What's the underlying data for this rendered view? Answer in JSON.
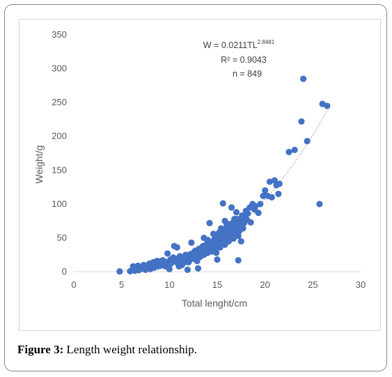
{
  "caption": {
    "label": "Figure 3:",
    "text": " Length weight relationship."
  },
  "annotation": {
    "equation_prefix": "W = 0.0211TL",
    "equation_exponent": "2.8481",
    "r_squared": "R² = 0.9043",
    "n": "n =  849"
  },
  "colors": {
    "points": "#4472C4",
    "trendline": "#8c8c8c",
    "text": "#595959"
  },
  "chart_data": {
    "type": "scatter",
    "xlabel": "Total lenght/cm",
    "ylabel": "Weight/g",
    "xlim": [
      0,
      30
    ],
    "ylim": [
      0,
      350
    ],
    "xticks": [
      0,
      5,
      10,
      15,
      20,
      25,
      30
    ],
    "yticks": [
      0,
      50,
      100,
      150,
      200,
      250,
      300,
      350
    ],
    "grid": false,
    "legend": "none",
    "trendline": {
      "type": "power",
      "a": 0.0211,
      "b": 2.8481,
      "style": "dotted"
    },
    "points": [
      [
        4.8,
        0.5
      ],
      [
        5.9,
        0.8
      ],
      [
        6.2,
        8
      ],
      [
        6.4,
        1.5
      ],
      [
        6.6,
        5
      ],
      [
        6.7,
        9
      ],
      [
        6.8,
        2.5
      ],
      [
        7.0,
        4
      ],
      [
        7.1,
        7
      ],
      [
        7.3,
        10
      ],
      [
        7.5,
        3
      ],
      [
        7.6,
        6
      ],
      [
        7.8,
        9
      ],
      [
        7.9,
        12
      ],
      [
        8.0,
        4
      ],
      [
        8.1,
        8
      ],
      [
        8.2,
        11
      ],
      [
        8.3,
        14
      ],
      [
        8.4,
        6
      ],
      [
        8.5,
        10
      ],
      [
        8.6,
        13
      ],
      [
        8.7,
        16
      ],
      [
        8.8,
        8
      ],
      [
        8.9,
        12
      ],
      [
        9.0,
        15
      ],
      [
        9.1,
        9
      ],
      [
        9.2,
        13
      ],
      [
        9.3,
        17
      ],
      [
        9.4,
        11
      ],
      [
        9.5,
        15
      ],
      [
        9.6,
        8
      ],
      [
        9.7,
        12
      ],
      [
        9.8,
        27
      ],
      [
        9.9,
        14
      ],
      [
        10.0,
        10
      ],
      [
        10.1,
        18
      ],
      [
        10.2,
        13
      ],
      [
        10.3,
        16
      ],
      [
        10.4,
        21
      ],
      [
        10.5,
        38
      ],
      [
        10.6,
        15
      ],
      [
        10.7,
        19
      ],
      [
        10.8,
        36
      ],
      [
        10.9,
        12
      ],
      [
        11.0,
        17
      ],
      [
        11.1,
        23
      ],
      [
        11.2,
        20
      ],
      [
        11.3,
        10
      ],
      [
        11.4,
        18
      ],
      [
        11.5,
        22
      ],
      [
        11.6,
        14
      ],
      [
        11.7,
        25
      ],
      [
        11.8,
        20
      ],
      [
        11.9,
        3
      ],
      [
        12.0,
        23
      ],
      [
        12.1,
        17
      ],
      [
        12.2,
        26
      ],
      [
        12.3,
        43
      ],
      [
        12.4,
        22
      ],
      [
        12.5,
        28
      ],
      [
        12.6,
        19
      ],
      [
        12.7,
        31
      ],
      [
        12.8,
        25
      ],
      [
        12.9,
        16
      ],
      [
        13.0,
        5
      ],
      [
        13.0,
        29
      ],
      [
        13.1,
        34
      ],
      [
        13.2,
        22
      ],
      [
        13.3,
        27
      ],
      [
        13.4,
        32
      ],
      [
        13.5,
        38
      ],
      [
        13.6,
        25
      ],
      [
        13.7,
        30
      ],
      [
        13.8,
        35
      ],
      [
        13.9,
        41
      ],
      [
        14.0,
        28
      ],
      [
        14.0,
        47
      ],
      [
        14.1,
        33
      ],
      [
        14.2,
        38
      ],
      [
        14.2,
        72
      ],
      [
        14.3,
        44
      ],
      [
        14.4,
        30
      ],
      [
        14.5,
        36
      ],
      [
        14.6,
        42
      ],
      [
        14.7,
        48
      ],
      [
        14.8,
        33
      ],
      [
        14.9,
        39
      ],
      [
        15.0,
        45
      ],
      [
        15.0,
        18
      ],
      [
        15.1,
        52
      ],
      [
        15.2,
        58
      ],
      [
        15.3,
        36
      ],
      [
        15.4,
        42
      ],
      [
        15.5,
        49
      ],
      [
        15.6,
        55
      ],
      [
        15.6,
        101
      ],
      [
        15.7,
        62
      ],
      [
        15.8,
        40
      ],
      [
        15.9,
        47
      ],
      [
        16.0,
        53
      ],
      [
        16.0,
        68
      ],
      [
        16.1,
        60
      ],
      [
        16.2,
        45
      ],
      [
        16.3,
        51
      ],
      [
        16.4,
        58
      ],
      [
        16.5,
        65
      ],
      [
        16.5,
        95
      ],
      [
        16.6,
        72
      ],
      [
        16.7,
        49
      ],
      [
        16.8,
        56
      ],
      [
        16.9,
        63
      ],
      [
        17.0,
        70
      ],
      [
        17.0,
        88
      ],
      [
        17.1,
        78
      ],
      [
        17.2,
        53
      ],
      [
        17.2,
        17
      ],
      [
        17.3,
        60
      ],
      [
        17.4,
        67
      ],
      [
        17.5,
        75
      ],
      [
        17.5,
        45
      ],
      [
        17.6,
        83
      ],
      [
        17.7,
        64
      ],
      [
        17.8,
        72
      ],
      [
        17.9,
        80
      ],
      [
        18.0,
        90
      ],
      [
        18.1,
        77
      ],
      [
        18.2,
        86
      ],
      [
        18.4,
        95
      ],
      [
        18.5,
        73
      ],
      [
        18.7,
        100
      ],
      [
        18.9,
        92
      ],
      [
        19.0,
        97
      ],
      [
        19.3,
        87
      ],
      [
        19.5,
        100
      ],
      [
        19.8,
        112
      ],
      [
        20.0,
        120
      ],
      [
        20.3,
        112
      ],
      [
        20.5,
        133
      ],
      [
        20.7,
        110
      ],
      [
        21.0,
        135
      ],
      [
        21.2,
        128
      ],
      [
        21.4,
        115
      ],
      [
        21.5,
        130
      ],
      [
        22.5,
        177
      ],
      [
        23.1,
        180
      ],
      [
        23.8,
        222
      ],
      [
        24.0,
        285
      ],
      [
        24.4,
        193
      ],
      [
        25.7,
        100
      ],
      [
        26.0,
        248
      ],
      [
        26.5,
        245
      ],
      [
        14.6,
        56
      ],
      [
        15.4,
        64
      ],
      [
        16.2,
        70
      ],
      [
        16.8,
        78
      ],
      [
        15.8,
        75
      ],
      [
        14.9,
        28
      ],
      [
        13.6,
        50
      ],
      [
        12.0,
        14
      ],
      [
        11.0,
        8
      ],
      [
        10.0,
        4
      ]
    ]
  }
}
